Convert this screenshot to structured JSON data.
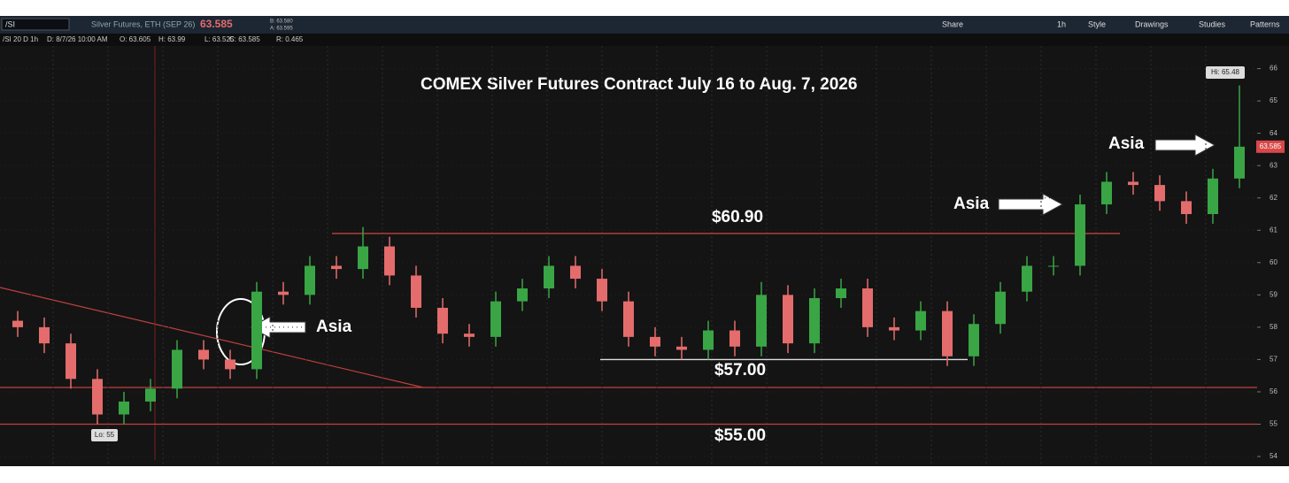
{
  "toolbar": {
    "symbol": "/SI",
    "description": "Silver Futures, ETH (SEP 26)",
    "last": "63.585",
    "bid": "B: 63.580",
    "ask": "A: 63.595",
    "buttons": [
      "Share",
      "1h",
      "Style",
      "Drawings",
      "Studies",
      "Patterns"
    ]
  },
  "info_bar": [
    "/SI 20 D 1h",
    "D: 8/7/26 10:00 AM",
    "O: 63.605",
    "H: 63.99",
    "L: 63.525",
    "C: 63.585",
    "R: 0.465"
  ],
  "chart_data": {
    "type": "candlestick",
    "title": "COMEX Silver Futures Contract July 16 to Aug. 7, 2026",
    "open": [
      58.2,
      58.0,
      57.5,
      56.4,
      55.3,
      55.7,
      56.1,
      57.3,
      57.0,
      56.7,
      59.1,
      59.0,
      59.9,
      59.8,
      60.5,
      59.6,
      58.6,
      57.8,
      57.7,
      58.8,
      59.2,
      59.9,
      59.5,
      58.8,
      57.7,
      57.4,
      57.3,
      57.9,
      57.4,
      59.0,
      57.5,
      58.9,
      59.2,
      58.0,
      57.9,
      58.5,
      57.1,
      58.1,
      59.1,
      59.9,
      59.9,
      61.8,
      62.5,
      62.4,
      61.9,
      61.5,
      62.6
    ],
    "high": [
      58.5,
      58.3,
      57.8,
      56.7,
      56.0,
      56.4,
      57.6,
      57.6,
      57.3,
      59.4,
      59.4,
      60.2,
      60.2,
      61.1,
      60.8,
      59.9,
      58.9,
      58.1,
      59.1,
      59.5,
      60.2,
      60.2,
      59.8,
      59.1,
      58.0,
      57.7,
      58.2,
      58.2,
      59.4,
      59.3,
      59.2,
      59.5,
      59.5,
      58.3,
      58.8,
      58.8,
      58.4,
      59.4,
      60.2,
      60.2,
      62.1,
      62.8,
      62.8,
      62.7,
      62.2,
      62.9,
      65.48
    ],
    "low": [
      57.7,
      57.2,
      56.1,
      55.0,
      55.0,
      55.4,
      55.8,
      56.7,
      56.4,
      56.4,
      58.7,
      58.7,
      59.5,
      59.5,
      59.3,
      58.3,
      57.5,
      57.4,
      57.4,
      58.5,
      58.9,
      59.2,
      58.5,
      57.4,
      57.1,
      57.0,
      57.0,
      57.1,
      57.1,
      57.2,
      57.2,
      58.6,
      57.7,
      57.6,
      57.6,
      56.8,
      56.8,
      57.8,
      58.8,
      59.6,
      59.6,
      61.5,
      62.1,
      61.6,
      61.2,
      61.2,
      62.3
    ],
    "close": [
      58.0,
      57.5,
      56.4,
      55.3,
      55.7,
      56.1,
      57.3,
      57.0,
      56.7,
      59.1,
      59.0,
      59.9,
      59.8,
      60.5,
      59.6,
      58.6,
      57.8,
      57.7,
      58.8,
      59.2,
      59.9,
      59.5,
      58.8,
      57.7,
      57.4,
      57.3,
      57.9,
      57.4,
      59.0,
      57.5,
      58.9,
      59.2,
      58.0,
      57.9,
      58.5,
      57.1,
      58.1,
      59.1,
      59.9,
      59.9,
      61.8,
      62.5,
      62.4,
      61.9,
      61.5,
      62.6,
      63.585
    ],
    "up_color": "#3aa545",
    "down_color": "#e46c6c",
    "ylim": [
      53.7,
      66.7
    ],
    "yticks": [
      54,
      55,
      56,
      57,
      58,
      59,
      60,
      61,
      62,
      63,
      64,
      65,
      66
    ],
    "grid": true,
    "levels": [
      {
        "value": 60.9,
        "label": "$60.90",
        "color": "#c0403f"
      },
      {
        "value": 57,
        "label": "$57.00",
        "color": "#dddddd"
      },
      {
        "value": 55,
        "label": "$55.00",
        "color": "#c0403f"
      }
    ],
    "annotations": [
      "Asia",
      "Asia",
      "Asia"
    ],
    "hi_label": "Hi: 65.48",
    "lo_label": "Lo: 55",
    "last_price_label": "63.585"
  }
}
